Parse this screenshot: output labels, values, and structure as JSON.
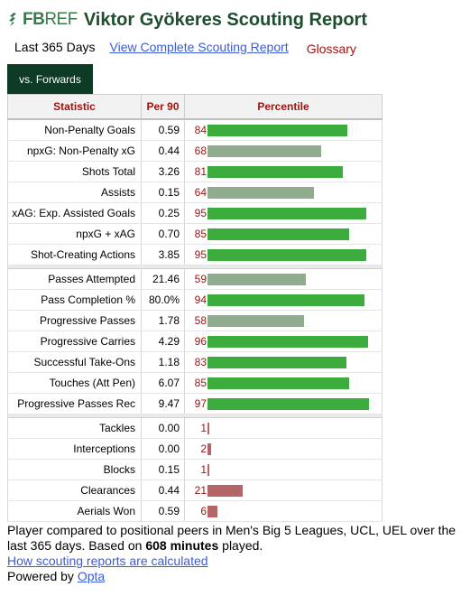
{
  "header": {
    "logo_fb": "FB",
    "logo_ref": "REF",
    "title": "Viktor Gyökeres Scouting Report"
  },
  "subnav": {
    "period": "Last 365 Days",
    "full_report_link": "View Complete Scouting Report",
    "glossary": "Glossary"
  },
  "tab": {
    "label": "vs. Forwards"
  },
  "table": {
    "headers": {
      "statistic": "Statistic",
      "per90": "Per 90",
      "percentile": "Percentile"
    },
    "colors": {
      "high": "#3cac3c",
      "mid": "#8fac8f",
      "low": "#b46666"
    },
    "groups": [
      [
        {
          "stat": "Non-Penalty Goals",
          "per90": "0.59",
          "pct": 84
        },
        {
          "stat": "npxG: Non-Penalty xG",
          "per90": "0.44",
          "pct": 68
        },
        {
          "stat": "Shots Total",
          "per90": "3.26",
          "pct": 81
        },
        {
          "stat": "Assists",
          "per90": "0.15",
          "pct": 64
        },
        {
          "stat": "xAG: Exp. Assisted Goals",
          "per90": "0.25",
          "pct": 95
        },
        {
          "stat": "npxG + xAG",
          "per90": "0.70",
          "pct": 85
        },
        {
          "stat": "Shot-Creating Actions",
          "per90": "3.85",
          "pct": 95
        }
      ],
      [
        {
          "stat": "Passes Attempted",
          "per90": "21.46",
          "pct": 59
        },
        {
          "stat": "Pass Completion %",
          "per90": "80.0%",
          "pct": 94
        },
        {
          "stat": "Progressive Passes",
          "per90": "1.78",
          "pct": 58
        },
        {
          "stat": "Progressive Carries",
          "per90": "4.29",
          "pct": 96
        },
        {
          "stat": "Successful Take-Ons",
          "per90": "1.18",
          "pct": 83
        },
        {
          "stat": "Touches (Att Pen)",
          "per90": "6.07",
          "pct": 85
        },
        {
          "stat": "Progressive Passes Rec",
          "per90": "9.47",
          "pct": 97
        }
      ],
      [
        {
          "stat": "Tackles",
          "per90": "0.00",
          "pct": 1
        },
        {
          "stat": "Interceptions",
          "per90": "0.00",
          "pct": 2
        },
        {
          "stat": "Blocks",
          "per90": "0.15",
          "pct": 1
        },
        {
          "stat": "Clearances",
          "per90": "0.44",
          "pct": 21
        },
        {
          "stat": "Aerials Won",
          "per90": "0.59",
          "pct": 6
        }
      ]
    ]
  },
  "footer": {
    "text_before": "Player compared to positional peers in Men's Big 5 Leagues, UCL, UEL over the last 365 days. Based on ",
    "minutes": "608 minutes",
    "text_after": " played.",
    "how_link": "How scouting reports are calculated",
    "powered_by": "Powered by ",
    "opta_link": "Opta"
  }
}
